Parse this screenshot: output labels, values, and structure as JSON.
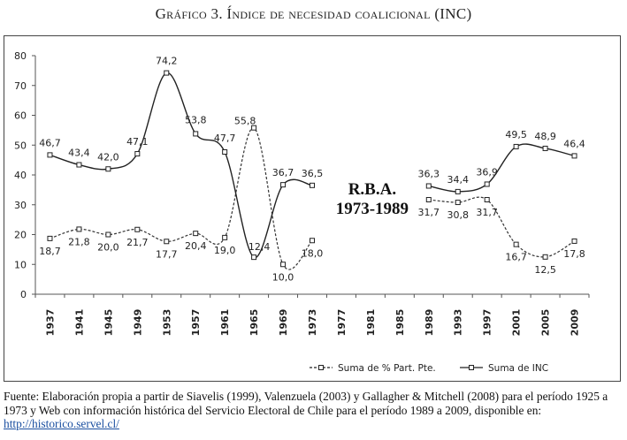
{
  "chart_data": {
    "type": "line",
    "title": "Gráfico 3. Índice de necesidad coalicional (INC)",
    "xlabel": "",
    "ylabel": "",
    "ylim": [
      0,
      80
    ],
    "yticks": [
      0,
      10,
      20,
      30,
      40,
      50,
      60,
      70,
      80
    ],
    "categories": [
      "1937",
      "1941",
      "1945",
      "1949",
      "1953",
      "1957",
      "1961",
      "1965",
      "1969",
      "1973",
      "1977",
      "1981",
      "1985",
      "1989",
      "1993",
      "1997",
      "2001",
      "2005",
      "2009"
    ],
    "series": [
      {
        "name": "Suma de  % Part. Pte.",
        "style": "dashed",
        "values": [
          18.7,
          21.8,
          20.0,
          21.7,
          17.7,
          20.4,
          19.0,
          55.8,
          10.0,
          18.0,
          null,
          null,
          null,
          31.7,
          30.8,
          31.7,
          16.7,
          12.5,
          17.8
        ],
        "labels": [
          "18,7",
          "21,8",
          "20,0",
          "21,7",
          "17,7",
          "20,4",
          "19,0",
          "55,8",
          "10,0",
          "18,0",
          null,
          null,
          null,
          "31,7",
          "30,8",
          "31,7",
          "16,7",
          "12,5",
          "17,8"
        ]
      },
      {
        "name": "Suma de  INC",
        "style": "solid",
        "values": [
          46.7,
          43.4,
          42.0,
          47.1,
          74.2,
          53.8,
          47.7,
          12.4,
          36.7,
          36.5,
          null,
          null,
          null,
          36.3,
          34.4,
          36.9,
          49.5,
          48.9,
          46.4
        ],
        "labels": [
          "46,7",
          "43,4",
          "42,0",
          "47,1",
          "74,2",
          "53,8",
          "47,7",
          "12,4",
          "36,7",
          "36,5",
          null,
          null,
          null,
          "36,3",
          "34,4",
          "36,9",
          "49,5",
          "48,9",
          "46,4"
        ]
      }
    ],
    "annotation": {
      "line1": "R.B.A.",
      "line2": "1973-1989"
    },
    "legend_position": "bottom-right"
  },
  "header": {
    "title": "Gráfico 3. Índice de necesidad coalicional (INC)"
  },
  "footer": {
    "source_text": "Fuente: Elaboración propia a partir de Siavelis (1999), Valenzuela (2003) y Gallagher & Mitchell (2008) para el período 1925 a 1973 y Web con información histórica del Servicio Electoral de Chile para el período 1989 a 2009, disponible en: ",
    "link_text": "http://historico.servel.cl/"
  }
}
